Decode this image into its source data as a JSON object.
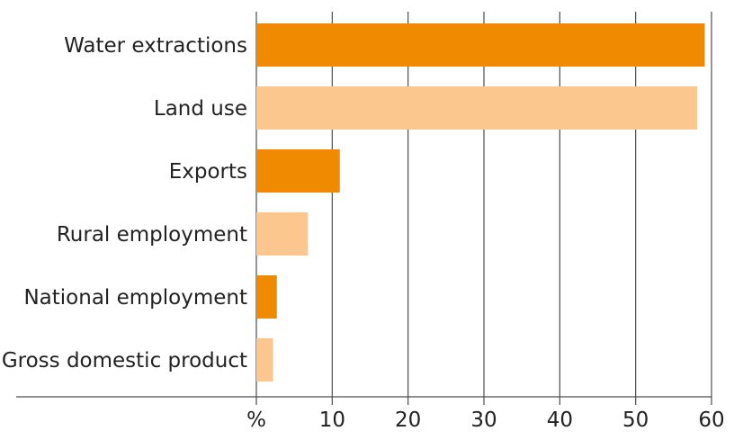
{
  "chart_data": {
    "type": "bar",
    "orientation": "horizontal",
    "categories": [
      "Water extractions",
      "Land use",
      "Exports",
      "Rural employment",
      "National employment",
      "Gross domestic product"
    ],
    "values": [
      59.1,
      58.1,
      11.0,
      6.8,
      2.7,
      2.2
    ],
    "bar_colors": [
      "#f08a00",
      "#fbc78e",
      "#f08a00",
      "#fbc78e",
      "#f08a00",
      "#fbc78e"
    ],
    "title": "",
    "xlabel": "%",
    "ylabel": "",
    "xlim": [
      0,
      60
    ],
    "x_ticks": [
      10,
      20,
      30,
      40,
      50,
      60
    ],
    "grid": "vertical"
  },
  "colors": {
    "grid": "#4d4d4d",
    "axis": "#4d4d4d",
    "text": "#222222"
  }
}
